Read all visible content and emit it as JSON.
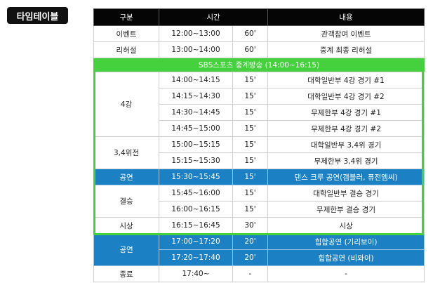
{
  "title": "타임테이블",
  "headers": [
    "구분",
    "시간",
    "내용"
  ],
  "broadcast_banner": "SBS스포츠 중계방송 (14:00~16:15)",
  "colors": {
    "green": "#45d03e",
    "blue": "#1b80c4",
    "header": "#050505"
  },
  "rows": [
    {
      "category": "이벤트",
      "time": "12:00~13:00",
      "duration": "60'",
      "content": "관객참여 이벤트"
    },
    {
      "category": "리허설",
      "time": "13:00~14:00",
      "duration": "60'",
      "content": "중계 최종 리허설"
    },
    {
      "category": "4강",
      "time": "14:00~14:15",
      "duration": "15'",
      "content": "대학일반부 4강 경기 #1"
    },
    {
      "time": "14:15~14:30",
      "duration": "15'",
      "content": "대학일반부 4강 경기 #2"
    },
    {
      "time": "14:30~14:45",
      "duration": "15'",
      "content": "무제한부 4강 경기 #1"
    },
    {
      "time": "14:45~15:00",
      "duration": "15'",
      "content": "무제한부 4강 경기 #2"
    },
    {
      "category": "3,4위전",
      "time": "15:00~15:15",
      "duration": "15'",
      "content": "대학일반부 3,4위 경기"
    },
    {
      "time": "15:15~15:30",
      "duration": "15'",
      "content": "무제한부 3,4위 경기"
    },
    {
      "category": "공연",
      "time": "15:30~15:45",
      "duration": "15'",
      "content": "댄스 크루 공연(갬블러, 퓨전엠씨)"
    },
    {
      "category": "결승",
      "time": "15:45~16:00",
      "duration": "15'",
      "content": "대학일반부 결승 경기"
    },
    {
      "time": "16:00~16:15",
      "duration": "15'",
      "content": "무제한부 결승 경기"
    },
    {
      "category": "시상",
      "time": "16:15~16:45",
      "duration": "30'",
      "content": "시상"
    },
    {
      "category": "공연",
      "time": "17:00~17:20",
      "duration": "20'",
      "content": "힙합공연 (기리보이)"
    },
    {
      "time": "17:20~17:40",
      "duration": "20'",
      "content": "힙합공연 (비와이)"
    },
    {
      "category": "종료",
      "time": "17:40~",
      "duration": "-",
      "content": "-"
    }
  ]
}
